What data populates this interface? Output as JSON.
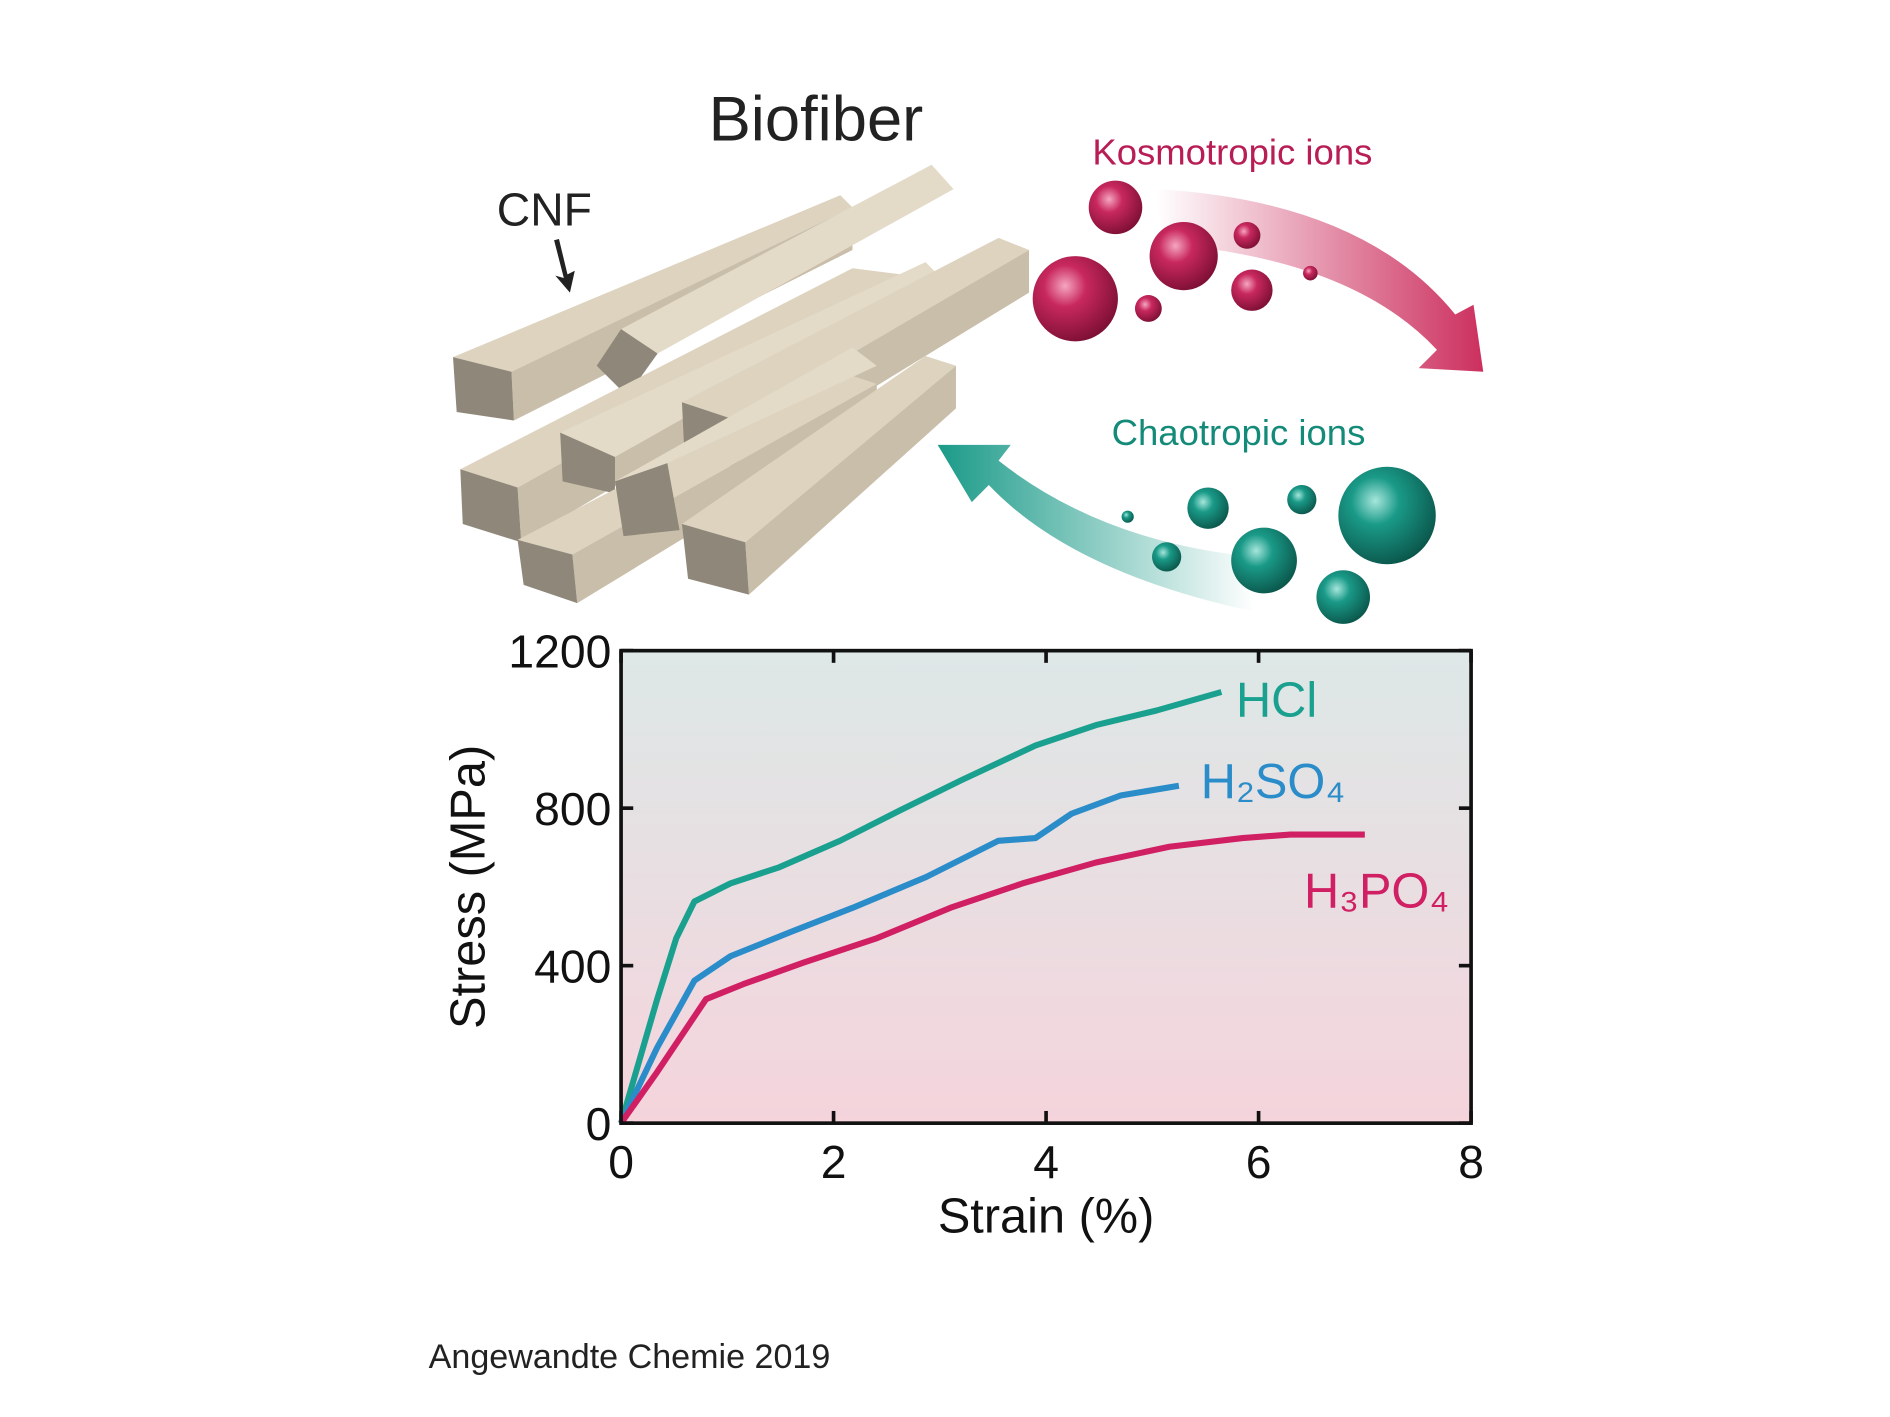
{
  "illustration": {
    "title": "Biofiber",
    "pointer": "CNF",
    "kosmotropic": "Kosmotropic ions",
    "chaotropic": "Chaotropic ions"
  },
  "chart_data": {
    "type": "line",
    "xlabel": "Strain (%)",
    "ylabel": "Stress (MPa)",
    "xlim": [
      0,
      8
    ],
    "xticks": [
      0,
      2,
      4,
      6,
      8
    ],
    "ylim": [
      0,
      1200
    ],
    "yticks": [
      0,
      400,
      800,
      1200
    ],
    "series": [
      {
        "name": "HCl",
        "color": "#1aa08e",
        "x": [
          0,
          0.34,
          0.52,
          0.69,
          1.03,
          1.49,
          2.06,
          2.63,
          3.21,
          3.9,
          4.47,
          5.04,
          5.65
        ],
        "values": [
          0,
          315,
          470,
          563,
          609,
          650,
          717,
          795,
          872,
          959,
          1011,
          1048,
          1095
        ]
      },
      {
        "name": "H₂SO₄",
        "color": "#2a8cc8",
        "x": [
          0,
          0.34,
          0.69,
          1.03,
          1.6,
          2.18,
          2.87,
          3.55,
          3.9,
          4.24,
          4.7,
          5.25
        ],
        "values": [
          0,
          192,
          362,
          424,
          486,
          547,
          625,
          717,
          724,
          786,
          832,
          857
        ]
      },
      {
        "name": "H₃PO₄",
        "color": "#d02063",
        "x": [
          0,
          0.34,
          0.8,
          1.15,
          1.72,
          2.41,
          3.1,
          3.78,
          4.47,
          5.16,
          5.85,
          6.3,
          7.0
        ],
        "values": [
          0,
          130,
          315,
          353,
          408,
          470,
          547,
          609,
          662,
          702,
          724,
          733,
          733
        ]
      }
    ]
  },
  "footer": "Angewandte Chemie 2019"
}
